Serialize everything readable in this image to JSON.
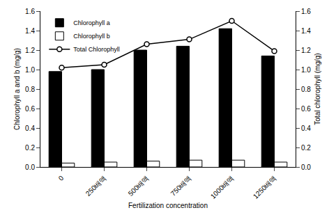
{
  "chart_data": {
    "type": "bar",
    "categories": [
      "0",
      "250배액",
      "500배액",
      "750배액",
      "1000배액",
      "1250배액"
    ],
    "x_label": "Fertilization concentration",
    "y_label": "Chlorophyll a and b (mg/g)",
    "y2_label": "Total chlorophyll (mg/g)",
    "series": [
      {
        "name": "Chlorophyll a",
        "type": "bar",
        "color": "#000000",
        "values": [
          0.98,
          1.0,
          1.2,
          1.24,
          1.42,
          1.14
        ]
      },
      {
        "name": "Chlorophyll b",
        "type": "bar",
        "color": "#ffffff",
        "values": [
          0.04,
          0.05,
          0.06,
          0.07,
          0.07,
          0.05
        ]
      },
      {
        "name": "Total Chlorophyll",
        "type": "line",
        "color": "#000000",
        "marker": "circle",
        "axis": "y2",
        "values": [
          1.02,
          1.05,
          1.26,
          1.31,
          1.5,
          1.19
        ]
      }
    ],
    "ylim": [
      0,
      1.6
    ],
    "yticks": [
      {
        "value": 0,
        "label": "0.0"
      },
      0.2,
      0.4,
      0.6,
      0.8,
      {
        "value": 1,
        "label": "1.0"
      },
      1.2,
      1.4,
      1.6
    ],
    "y2lim": [
      0,
      1.6
    ],
    "y2ticks": [
      {
        "value": 0,
        "label": "0.0"
      },
      0.2,
      0.4,
      0.6,
      0.8,
      {
        "value": 1,
        "label": "1.0"
      },
      1.2,
      1.4,
      1.6
    ],
    "grid": false,
    "legend": "top left"
  }
}
